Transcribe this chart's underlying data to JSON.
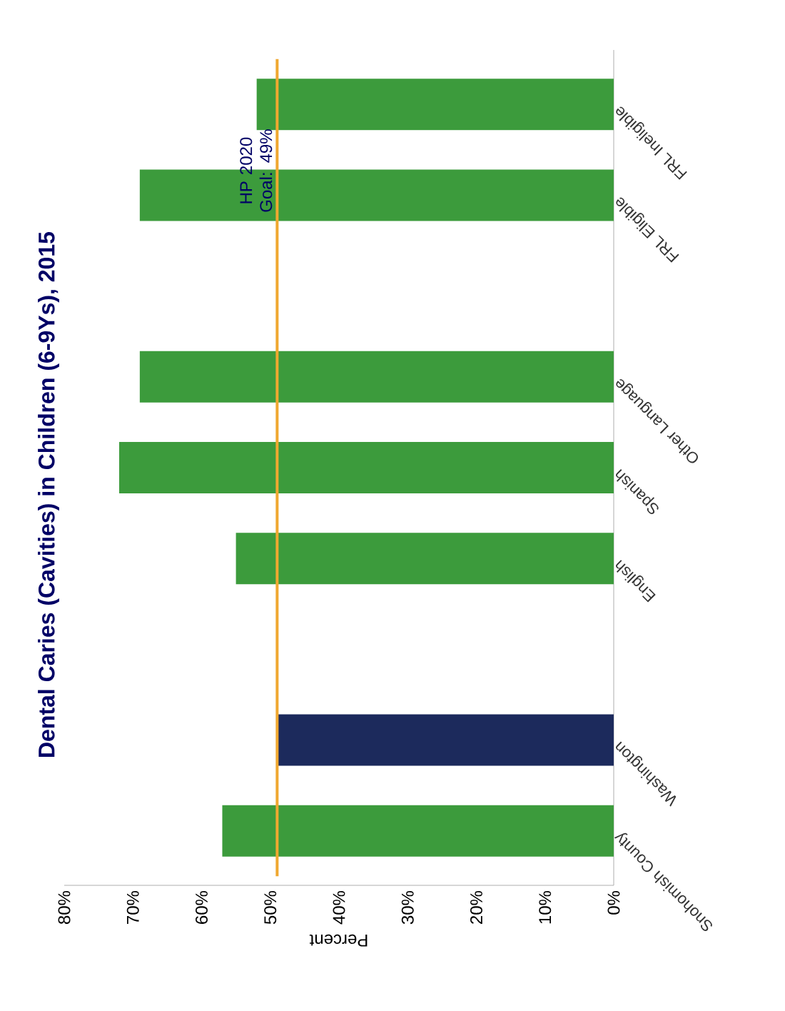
{
  "chart_data": {
    "type": "bar",
    "orientation": "horizontal",
    "title": "Dental Caries (Cavities) in Children (6-9Ys), 2015",
    "xlabel": "Percent",
    "categories": [
      "FRL Ineligible",
      "FRL Eligible",
      null,
      "Other Language",
      "Spanish",
      "English",
      null,
      "Washington",
      "Snohomish County"
    ],
    "values": [
      52,
      69,
      null,
      69,
      72,
      55,
      null,
      49,
      57
    ],
    "colors": [
      "#3c9b3c",
      "#3c9b3c",
      null,
      "#3c9b3c",
      "#3c9b3c",
      "#3c9b3c",
      null,
      "#1c2a5c",
      "#3c9b3c"
    ],
    "xlim": [
      80,
      0
    ],
    "xticks": [
      {
        "value": 80,
        "label": "80%"
      },
      {
        "value": 70,
        "label": "70%"
      },
      {
        "value": 60,
        "label": "60%"
      },
      {
        "value": 50,
        "label": "50%"
      },
      {
        "value": 40,
        "label": "40%"
      },
      {
        "value": 30,
        "label": "30%"
      },
      {
        "value": 20,
        "label": "20%"
      },
      {
        "value": 10,
        "label": "10%"
      },
      {
        "value": 0,
        "label": "0%"
      }
    ],
    "ref_lines": [
      {
        "axis": "x",
        "value": 49,
        "label": "HP 2020 Goal: 49%",
        "color": "#f0a830"
      }
    ],
    "grid": false
  }
}
